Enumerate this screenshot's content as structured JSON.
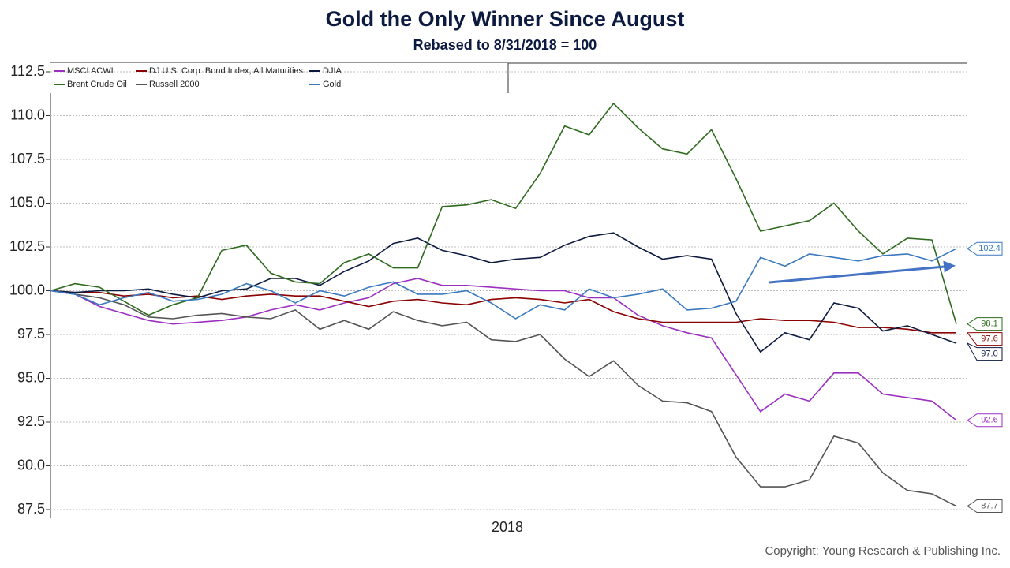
{
  "chart_data": {
    "type": "line",
    "title": "Gold the Only Winner Since August",
    "subtitle": "Rebased to 8/31/2018 = 100",
    "x_label": "2018",
    "copyright": "Copyright: Young Research & Publishing Inc.",
    "categories": [
      null,
      null,
      null,
      null,
      null,
      null,
      null,
      null,
      null,
      null,
      null,
      null,
      null,
      null,
      null,
      null,
      null,
      null,
      null,
      null,
      null,
      null,
      null,
      null,
      null,
      null,
      null,
      null,
      null,
      null,
      null,
      null,
      null,
      null,
      null,
      null,
      null,
      null
    ],
    "ylim": [
      87.5,
      112.5
    ],
    "yticks": [
      87.5,
      {
        "value": 90,
        "label": "90.0"
      },
      92.5,
      {
        "value": 95,
        "label": "95.0"
      },
      97.5,
      {
        "value": 100,
        "label": "100.0"
      },
      102.5,
      {
        "value": 105,
        "label": "105.0"
      },
      107.5,
      {
        "value": 110,
        "label": "110.0"
      },
      112.5
    ],
    "grid": true,
    "legend": "top-left",
    "series": [
      {
        "name": "MSCI ACWI",
        "color": "#9b30c0",
        "end_label": "92.6",
        "values": [
          100,
          99.8,
          99.1,
          98.7,
          98.3,
          98.1,
          98.2,
          98.3,
          98.5,
          98.9,
          99.2,
          98.9,
          99.3,
          99.6,
          100.4,
          100.7,
          100.3,
          100.3,
          100.2,
          100.1,
          100.0,
          100.0,
          99.6,
          99.6,
          98.6,
          98.0,
          97.6,
          97.3,
          95.2,
          93.1,
          94.1,
          93.7,
          95.3,
          95.3,
          94.1,
          93.9,
          93.7,
          92.6
        ]
      },
      {
        "name": "DJ U.S. Corp. Bond Index, All Maturities",
        "color": "#8b0000",
        "end_label": "97.6",
        "values": [
          100,
          99.9,
          99.9,
          99.7,
          99.8,
          99.6,
          99.7,
          99.5,
          99.7,
          99.8,
          99.7,
          99.7,
          99.4,
          99.1,
          99.4,
          99.5,
          99.3,
          99.2,
          99.5,
          99.6,
          99.5,
          99.3,
          99.5,
          98.8,
          98.4,
          98.2,
          98.2,
          98.2,
          98.2,
          98.4,
          98.3,
          98.3,
          98.2,
          97.9,
          97.9,
          97.8,
          97.6,
          97.6
        ]
      },
      {
        "name": "DJIA",
        "color": "#0d1a40",
        "end_label": "97.0",
        "values": [
          100,
          99.9,
          100,
          100,
          100.1,
          99.8,
          99.6,
          100,
          100.1,
          100.7,
          100.7,
          100.3,
          101.1,
          101.7,
          102.7,
          103,
          102.3,
          102,
          101.6,
          101.8,
          101.9,
          102.6,
          103.1,
          103.3,
          102.5,
          101.8,
          102,
          101.8,
          98.7,
          96.5,
          97.6,
          97.2,
          99.3,
          99,
          97.7,
          98,
          97.5,
          97.0
        ]
      },
      {
        "name": "Brent Crude Oil",
        "color": "#2e6b1e",
        "end_label": "98.1",
        "values": [
          100,
          100.4,
          100.2,
          99.4,
          98.6,
          99.2,
          99.6,
          102.3,
          102.6,
          101,
          100.5,
          100.4,
          101.6,
          102.1,
          101.3,
          101.3,
          104.8,
          104.9,
          105.2,
          104.7,
          106.7,
          109.4,
          108.9,
          110.7,
          109.3,
          108.1,
          107.8,
          109.2,
          106.4,
          103.4,
          103.7,
          104,
          105,
          103.4,
          102.1,
          103,
          102.9,
          98.1
        ]
      },
      {
        "name": "Russell 2000",
        "color": "#555555",
        "end_label": "87.7",
        "values": [
          100,
          99.8,
          99.6,
          99.2,
          98.5,
          98.4,
          98.6,
          98.7,
          98.5,
          98.4,
          98.9,
          97.8,
          98.3,
          97.8,
          98.8,
          98.3,
          98,
          98.2,
          97.2,
          97.1,
          97.5,
          96.1,
          95.1,
          96,
          94.6,
          93.7,
          93.6,
          93.1,
          90.5,
          88.8,
          88.8,
          89.2,
          91.7,
          91.3,
          89.6,
          88.6,
          88.4,
          87.7
        ]
      },
      {
        "name": "Gold",
        "color": "#3a78c0",
        "end_label": "102.4",
        "values": [
          100,
          99.8,
          99.2,
          99.6,
          99.9,
          99.4,
          99.5,
          99.8,
          100.4,
          100,
          99.3,
          100,
          99.7,
          100.2,
          100.5,
          99.8,
          99.8,
          100,
          99.3,
          98.4,
          99.2,
          98.9,
          100.1,
          99.6,
          99.8,
          100.1,
          98.9,
          99,
          99.4,
          101.9,
          101.4,
          102.1,
          101.9,
          101.7,
          102.0,
          102.1,
          101.7,
          102.4
        ]
      }
    ]
  }
}
